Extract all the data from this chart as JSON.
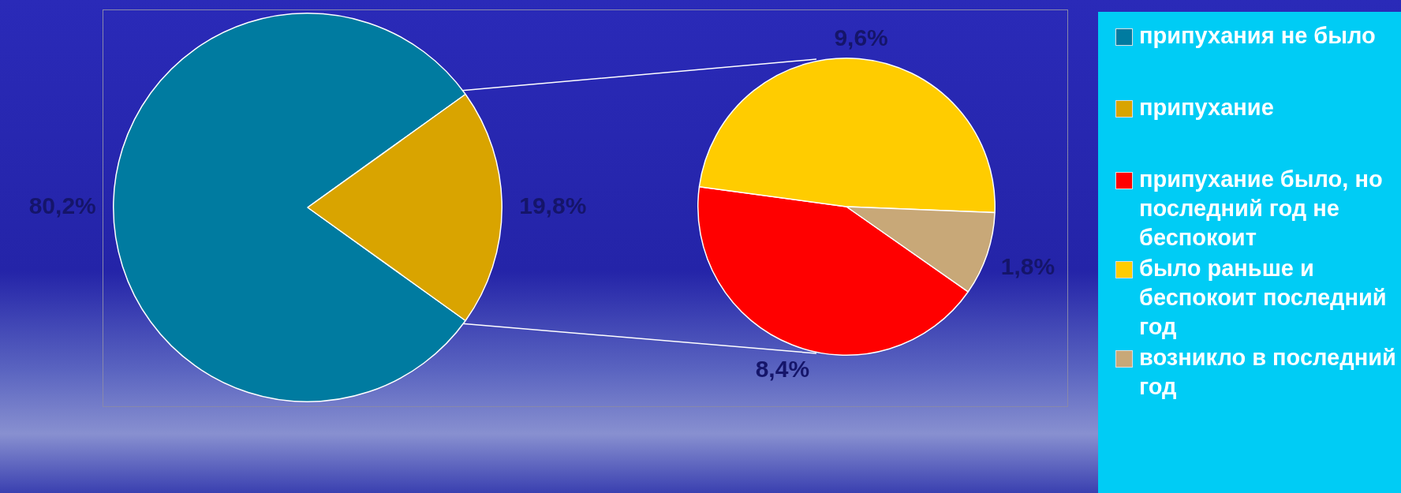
{
  "chart_data": [
    {
      "type": "pie",
      "categories": [
        "припухания не было",
        "припухание"
      ],
      "values": [
        80.2,
        19.8
      ],
      "colors": [
        "#007ba0",
        "#d9a400"
      ],
      "value_labels": [
        "80,2%",
        "19,8%"
      ],
      "legend": "right"
    },
    {
      "type": "pie",
      "categories": [
        "припухание было, но последний год не беспокоит",
        "было раньше и беспокоит последний год",
        "возникло в последний год"
      ],
      "values": [
        8.4,
        9.6,
        1.8
      ],
      "colors": [
        "#ff0000",
        "#ffcc00",
        "#c8a878"
      ],
      "value_labels": [
        "8,4%",
        "9,6%",
        "1,8%"
      ],
      "legend": "right"
    }
  ]
}
